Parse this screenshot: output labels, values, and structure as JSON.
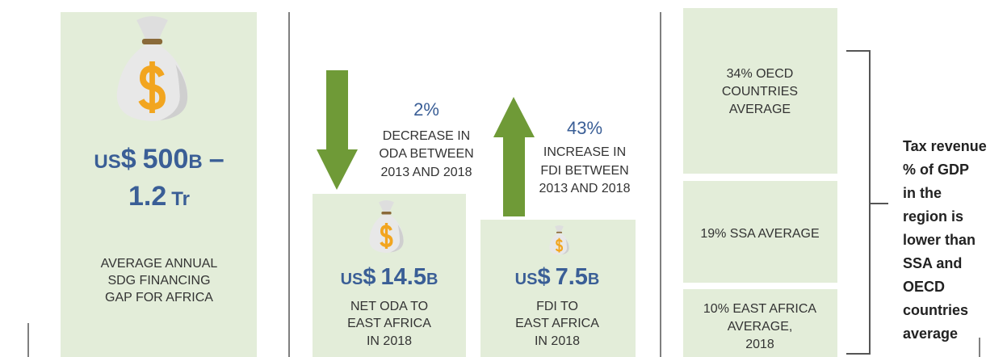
{
  "gap": {
    "currency_code": "US",
    "currency_sign": "$",
    "amount": "500",
    "unit": "B",
    "dash": "–",
    "amount2": "1.2",
    "unit2": "Tr",
    "caption": [
      "AVERAGE ANNUAL",
      "SDG FINANCING",
      "GAP FOR AFRICA"
    ]
  },
  "oda": {
    "change": "2%",
    "change_text": [
      "DECREASE IN",
      "ODA BETWEEN",
      "2013 AND 2018"
    ],
    "currency_code": "US",
    "currency_sign": "$",
    "amount": "14.5",
    "unit": "B",
    "caption": [
      "NET ODA TO",
      "EAST AFRICA",
      "IN 2018"
    ]
  },
  "fdi": {
    "change": "43%",
    "change_text": [
      "INCREASE IN",
      "FDI BETWEEN",
      "2013 AND 2018"
    ],
    "currency_code": "US",
    "currency_sign": "$",
    "amount": "7.5",
    "unit": "B",
    "caption": [
      "FDI TO",
      "EAST AFRICA",
      "IN 2018"
    ]
  },
  "tax": {
    "boxes": [
      [
        "34% OECD",
        "COUNTRIES",
        "AVERAGE"
      ],
      [
        "19% SSA AVERAGE"
      ],
      [
        "10% EAST AFRICA",
        "AVERAGE,",
        "2018"
      ]
    ],
    "note_highlight": [
      "Tax revenue",
      "% of GDP"
    ],
    "note": [
      "in the",
      "region is",
      "lower than",
      "SSA and",
      "OECD",
      "countries",
      "average"
    ]
  }
}
